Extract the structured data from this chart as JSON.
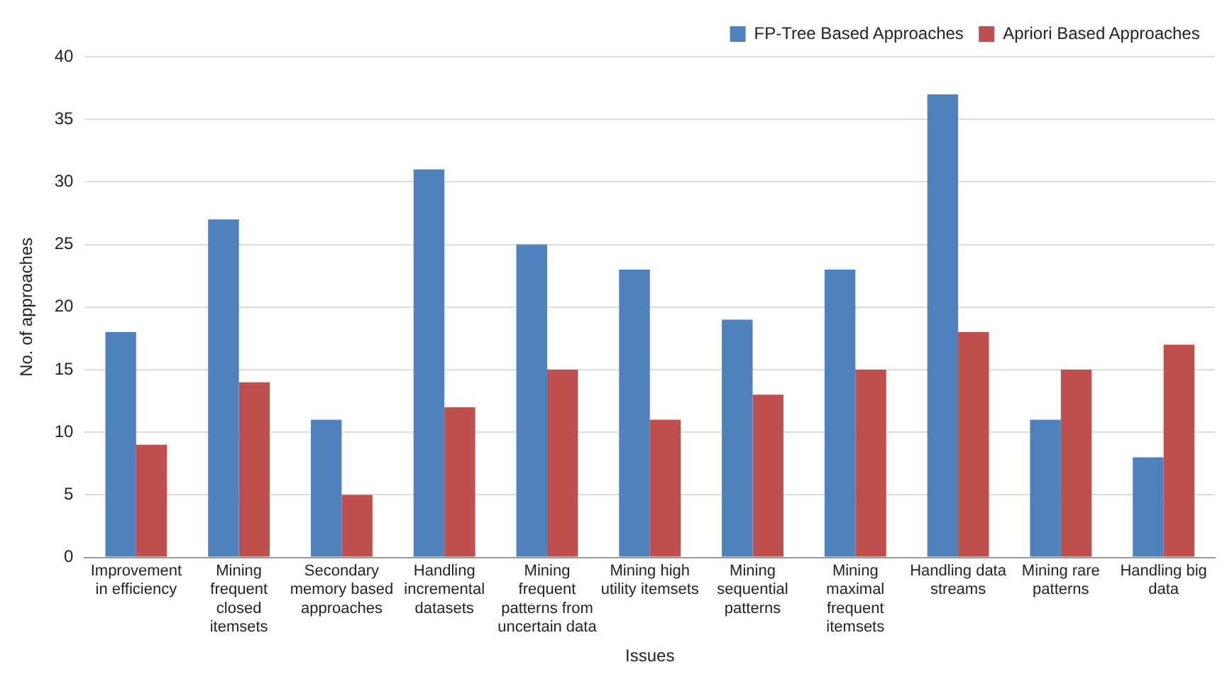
{
  "chart_data": {
    "type": "bar",
    "xlabel": "Issues",
    "ylabel": "No. of approaches",
    "categories": [
      "Improvement in efficiency",
      "Mining frequent closed itemsets",
      "Secondary memory based approaches",
      "Handling incremental datasets",
      "Mining frequent patterns from uncertain data",
      "Mining high utility itemsets",
      "Mining sequential patterns",
      "Mining maximal frequent itemsets",
      "Handling data streams",
      "Mining rare patterns",
      "Handling big data"
    ],
    "series": [
      {
        "name": "FP-Tree Based Approaches",
        "color": "#4f81bd",
        "values": [
          18,
          27,
          11,
          31,
          25,
          23,
          19,
          23,
          37,
          11,
          8
        ]
      },
      {
        "name": "Apriori Based Approaches",
        "color": "#c0504d",
        "values": [
          9,
          14,
          5,
          12,
          15,
          11,
          13,
          15,
          18,
          15,
          17
        ]
      }
    ],
    "ylim": [
      0,
      40
    ],
    "yticks": [
      0,
      5,
      10,
      15,
      20,
      25,
      30,
      35,
      40
    ],
    "grid": "y",
    "legend": "top right"
  }
}
